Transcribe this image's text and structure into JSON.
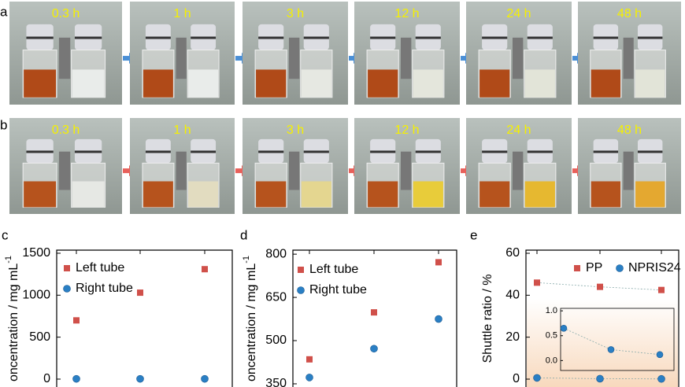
{
  "photo_rows": [
    {
      "label": "a",
      "times": [
        "0.3 h",
        "1 h",
        "3 h",
        "12 h",
        "24 h",
        "48 h"
      ]
    },
    {
      "label": "b",
      "times": [
        "0.3 h",
        "1 h",
        "3 h",
        "12 h",
        "24 h",
        "48 h"
      ]
    }
  ],
  "chart_data": [
    {
      "type": "scatter",
      "panel_label": "c",
      "ylabel": "oncentration / mg mL",
      "ylabel_sup": "-1",
      "categories": [
        null,
        null,
        null
      ],
      "ylim": [
        -94,
        1537
      ],
      "yticks": [
        0,
        500,
        1000,
        1500
      ],
      "legend": "stacked",
      "series": [
        {
          "name": "Left tube",
          "color": "#d0504a",
          "marker": "square",
          "values": [
            700,
            1030,
            1310
          ]
        },
        {
          "name": "Right tube",
          "color": "#2a7fc4",
          "marker": "circle",
          "values": [
            3,
            3,
            3
          ]
        }
      ]
    },
    {
      "type": "scatter",
      "panel_label": "d",
      "ylabel": "oncentration / mg mL",
      "ylabel_sup": "-1",
      "categories": [
        null,
        null,
        null
      ],
      "ylim": [
        339,
        814
      ],
      "yticks": [
        350,
        500,
        650,
        800
      ],
      "legend": "stacked",
      "series": [
        {
          "name": "Left tube",
          "color": "#d0504a",
          "marker": "square",
          "values": [
            435,
            598,
            772
          ]
        },
        {
          "name": "Right tube",
          "color": "#2a7fc4",
          "marker": "circle",
          "values": [
            372,
            472,
            575
          ]
        }
      ]
    },
    {
      "type": "scatter",
      "panel_label": "e",
      "ylabel": "Shuttle ratio / %",
      "categories": [
        null,
        null,
        null
      ],
      "ylim": [
        -3.75,
        61.5
      ],
      "yticks": [
        0,
        20,
        40,
        60
      ],
      "legend": "row",
      "lines": true,
      "series": [
        {
          "name": "PP",
          "color": "#d0504a",
          "marker": "square",
          "values": [
            46,
            44,
            42.5
          ]
        },
        {
          "name": "NPRIS24",
          "color": "#2a7fc4",
          "marker": "circle",
          "values": [
            0.6,
            0.2,
            0.1
          ]
        }
      ],
      "inset": {
        "ylim": [
          -0.2,
          1.05
        ],
        "yticks": [
          {
            "value": 0,
            "label": "0.0"
          },
          {
            "value": 0.5,
            "label": "0.5"
          },
          {
            "value": 1,
            "label": "1.0"
          }
        ],
        "color": "#2a7fc4",
        "values": [
          0.65,
          0.22,
          0.12
        ]
      }
    }
  ]
}
